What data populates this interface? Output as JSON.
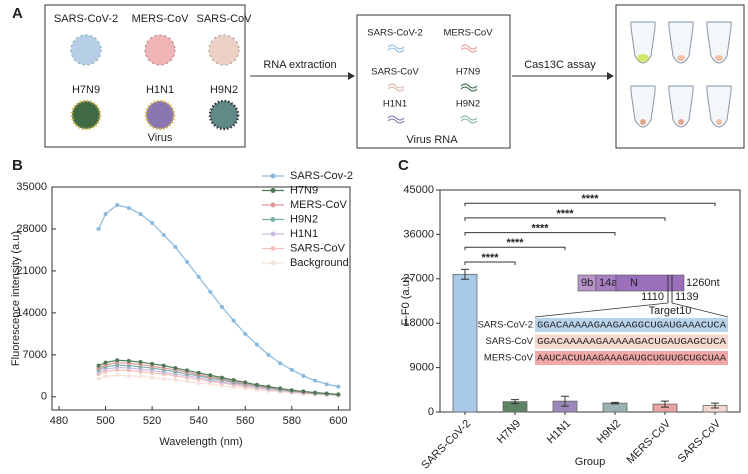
{
  "panels": [
    "A",
    "B",
    "C"
  ],
  "diagram": {
    "virus_box": {
      "labels": [
        "SARS-CoV-2",
        "MERS-CoV",
        "SARS-CoV",
        "H7N9",
        "H1N1",
        "H9N2"
      ],
      "caption": "Virus"
    },
    "step1": "RNA extraction",
    "rna_box": {
      "labels": [
        "SARS-CoV-2",
        "MERS-CoV",
        "SARS-CoV",
        "H7N9",
        "H1N1",
        "H9N2"
      ],
      "caption": "Virus RNA"
    },
    "step2": "Cas13C assay"
  },
  "chart_data": [
    {
      "type": "line",
      "xlabel": "Wavelength (nm)",
      "ylabel": "Fluorescence intensity (a.u)",
      "x": [
        497,
        500,
        505,
        510,
        515,
        520,
        525,
        530,
        535,
        540,
        545,
        550,
        555,
        560,
        565,
        570,
        575,
        580,
        585,
        590,
        595,
        600
      ],
      "xlim": [
        477,
        605
      ],
      "xticks": [
        480,
        500,
        520,
        540,
        560,
        580,
        600
      ],
      "ylim": [
        -2200,
        35000
      ],
      "yticks": [
        0,
        7000,
        14000,
        21000,
        28000,
        35000
      ],
      "legend": "upper right",
      "series": [
        {
          "name": "SARS-Cov-2",
          "color": "#8ab9df",
          "values": [
            28000,
            30500,
            32000,
            31500,
            30500,
            29000,
            27000,
            25000,
            22500,
            20000,
            17500,
            15000,
            12700,
            10500,
            8700,
            7000,
            5600,
            4500,
            3500,
            2700,
            2100,
            1700
          ]
        },
        {
          "name": "H7N9",
          "color": "#4f7a58",
          "values": [
            5200,
            5700,
            6100,
            6000,
            5800,
            5500,
            5200,
            4800,
            4400,
            4000,
            3600,
            3200,
            2800,
            2400,
            2000,
            1700,
            1400,
            1100,
            900,
            700,
            550,
            400
          ]
        },
        {
          "name": "MERS-CoV",
          "color": "#d99a9a",
          "values": [
            4800,
            5300,
            5700,
            5600,
            5400,
            5100,
            4800,
            4500,
            4100,
            3700,
            3300,
            3000,
            2600,
            2200,
            1900,
            1600,
            1300,
            1000,
            800,
            650,
            500,
            380
          ]
        },
        {
          "name": "H9N2",
          "color": "#7fb0aa",
          "values": [
            4500,
            5000,
            5300,
            5200,
            5000,
            4800,
            4500,
            4200,
            3800,
            3500,
            3100,
            2800,
            2400,
            2100,
            1800,
            1500,
            1200,
            950,
            760,
            600,
            470,
            350
          ]
        },
        {
          "name": "H1N1",
          "color": "#cbbce2",
          "values": [
            4100,
            4600,
            4900,
            4800,
            4600,
            4400,
            4100,
            3800,
            3500,
            3200,
            2800,
            2500,
            2200,
            1900,
            1600,
            1300,
            1100,
            870,
            700,
            550,
            430,
            320
          ]
        },
        {
          "name": "SARS-CoV",
          "color": "#f2c2b8",
          "values": [
            3800,
            4200,
            4500,
            4400,
            4200,
            4000,
            3800,
            3500,
            3200,
            2900,
            2600,
            2300,
            2000,
            1700,
            1450,
            1200,
            1000,
            800,
            640,
            500,
            400,
            300
          ]
        },
        {
          "name": "Background",
          "color": "#f6e2da",
          "values": [
            3000,
            3400,
            3600,
            3500,
            3400,
            3200,
            3000,
            2800,
            2600,
            2300,
            2100,
            1850,
            1600,
            1400,
            1200,
            1000,
            800,
            650,
            520,
            400,
            320,
            240
          ]
        }
      ]
    },
    {
      "type": "bar",
      "xlabel": "Group",
      "ylabel": "F-F0 (a.u)",
      "categories": [
        "SARS-CoV-2",
        "H7N9",
        "H1N1",
        "H9N2",
        "MERS-CoV",
        "SARS-CoV"
      ],
      "values": [
        27900,
        2100,
        2200,
        1800,
        1600,
        1300
      ],
      "errors": [
        1000,
        400,
        1000,
        150,
        600,
        500
      ],
      "colors": [
        "#a9c9e8",
        "#5e8465",
        "#9c88ba",
        "#9ab2b2",
        "#e9a3a3",
        "#f4d8cf"
      ],
      "significance": [
        null,
        "****",
        "****",
        "****",
        "****",
        "****"
      ],
      "ylim": [
        0,
        45000
      ],
      "yticks": [
        0,
        9000,
        18000,
        27000,
        36000,
        45000
      ],
      "inset": {
        "genes": [
          "9b",
          "14a",
          "N"
        ],
        "length": "1260nt",
        "start": "1110",
        "end": "1139",
        "target": "Target10",
        "rows": [
          {
            "name": "SARS-CoV-2",
            "sequence": "GGACAAAAAGAAGAAGGCUGAUGAAACUCA",
            "color": "#b9d3ea"
          },
          {
            "name": "SARS-CoV",
            "sequence": "GGACAAAAAGAAAAAGACUGAUGAGCUCA",
            "color": "#f6d8ce"
          },
          {
            "name": "MERS-CoV",
            "sequence": "AAUCACUUAAGAAAGAUGCUGUUGCUGCUAA",
            "color": "#f2a8a8"
          }
        ]
      }
    }
  ]
}
